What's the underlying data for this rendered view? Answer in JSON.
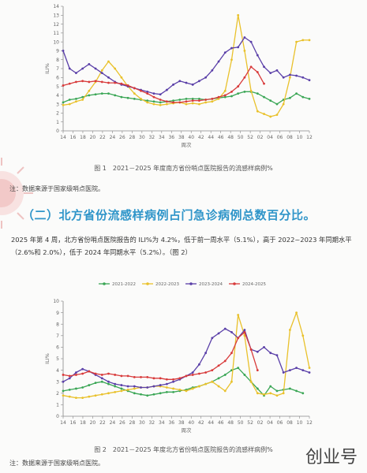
{
  "charts": [
    {
      "id": "c1",
      "caption": "图 1　2021－2025 年度南方省份哨点医院报告的流感样病例%",
      "note": "注：数据来源于国家级哨点医院。",
      "chart_data": {
        "type": "line",
        "ylabel": "ILI%",
        "xlabel": "周次",
        "ylim": [
          0,
          14
        ],
        "yticks": [
          0,
          1,
          2,
          3,
          4,
          5,
          6,
          7,
          8,
          9,
          10,
          11,
          12,
          13,
          14
        ],
        "xticks": [
          "14",
          "16",
          "18",
          "20",
          "22",
          "24",
          "26",
          "28",
          "30",
          "32",
          "34",
          "36",
          "38",
          "40",
          "42",
          "44",
          "46",
          "48",
          "50",
          "52",
          "02",
          "04",
          "06",
          "08",
          "10",
          "12"
        ],
        "grid": false,
        "legend": "none",
        "series": [
          {
            "name": "2021-2022",
            "color": "#3aa655",
            "values": [
              3.2,
              3.5,
              3.6,
              3.8,
              4.0,
              4.1,
              4.2,
              4.2,
              4.0,
              3.8,
              3.7,
              3.6,
              3.5,
              3.4,
              3.3,
              3.2,
              3.3,
              3.4,
              3.5,
              3.6,
              3.6,
              3.6,
              3.5,
              3.6,
              3.7,
              3.8,
              3.9,
              4.2,
              4.4,
              4.4,
              4.2,
              3.8,
              3.4,
              3.0,
              3.5,
              3.7,
              4.2,
              3.8,
              3.6
            ]
          },
          {
            "name": "2022-2023",
            "color": "#e9c12b",
            "values": [
              2.9,
              3.0,
              3.3,
              3.5,
              4.5,
              5.5,
              6.8,
              7.8,
              7.0,
              6.0,
              5.0,
              4.2,
              3.6,
              3.2,
              3.0,
              2.9,
              3.0,
              3.1,
              3.2,
              3.0,
              3.1,
              3.0,
              3.2,
              3.3,
              3.6,
              4.5,
              8.0,
              13.0,
              9.0,
              4.5,
              2.2,
              1.9,
              1.6,
              1.8,
              3.0,
              6.0,
              10.0,
              10.2,
              10.2
            ]
          },
          {
            "name": "2023-2024",
            "color": "#5a3fa8",
            "values": [
              9.0,
              7.0,
              6.5,
              7.0,
              7.5,
              7.0,
              6.5,
              6.0,
              5.5,
              5.2,
              5.0,
              4.8,
              4.6,
              4.4,
              4.2,
              4.1,
              4.6,
              5.2,
              5.6,
              5.4,
              5.2,
              5.6,
              6.0,
              6.8,
              7.8,
              8.8,
              9.3,
              9.4,
              10.5,
              10.0,
              8.5,
              7.2,
              6.5,
              6.8,
              6.0,
              6.3,
              6.2,
              6.0,
              5.7
            ]
          },
          {
            "name": "2024-2025",
            "color": "#d83a3a",
            "values": [
              5.1,
              5.3,
              5.5,
              5.6,
              5.5,
              5.6,
              5.5,
              5.4,
              5.4,
              5.3,
              5.1,
              4.8,
              4.5,
              4.2,
              3.8,
              3.5,
              3.3,
              3.2,
              3.2,
              3.3,
              3.4,
              3.4,
              3.5,
              3.6,
              3.8,
              4.0,
              4.4,
              5.0,
              6.0,
              7.2,
              6.6,
              5.3
            ]
          }
        ]
      }
    },
    {
      "id": "c2",
      "caption": "图 2　2021－2025 年度北方省份哨点医院报告的流感样病例%",
      "note": "注：数据来源于国家级哨点医院。",
      "chart_data": {
        "type": "line",
        "ylabel": "ILI%",
        "xlabel": "周次",
        "ylim": [
          0,
          10
        ],
        "yticks": [
          0,
          1,
          2,
          3,
          4,
          5,
          6,
          7,
          8,
          9,
          10
        ],
        "xticks": [
          "14",
          "16",
          "18",
          "20",
          "22",
          "24",
          "26",
          "28",
          "30",
          "32",
          "34",
          "36",
          "38",
          "40",
          "42",
          "44",
          "46",
          "48",
          "50",
          "52",
          "02",
          "04",
          "06",
          "08",
          "10",
          "12"
        ],
        "grid": false,
        "legend": "top",
        "series": [
          {
            "name": "2021-2022",
            "color": "#3aa655",
            "values": [
              2.2,
              2.3,
              2.4,
              2.5,
              2.7,
              2.9,
              3.0,
              2.8,
              2.6,
              2.4,
              2.2,
              2.0,
              1.9,
              1.8,
              1.9,
              2.0,
              2.1,
              2.1,
              2.2,
              2.3,
              2.5,
              2.6,
              2.8,
              3.0,
              3.3,
              3.6,
              4.0,
              4.2,
              3.6,
              3.0,
              2.4,
              1.8,
              2.6,
              2.2,
              2.3,
              2.4,
              2.2,
              2.0
            ]
          },
          {
            "name": "2022-2023",
            "color": "#e9c12b",
            "values": [
              1.8,
              1.7,
              1.6,
              1.6,
              1.7,
              1.8,
              1.9,
              2.0,
              2.1,
              2.2,
              2.3,
              2.4,
              2.5,
              2.5,
              2.6,
              2.6,
              2.5,
              2.4,
              2.3,
              2.2,
              2.4,
              2.6,
              2.8,
              3.0,
              2.6,
              2.2,
              3.0,
              8.8,
              7.0,
              3.0,
              2.0,
              1.9,
              2.0,
              1.8,
              2.0,
              7.5,
              9.0,
              7.0,
              4.2
            ]
          },
          {
            "name": "2023-2024",
            "color": "#5a3fa8",
            "values": [
              3.0,
              3.3,
              3.8,
              4.1,
              3.9,
              3.6,
              3.3,
              3.0,
              2.8,
              2.7,
              2.6,
              2.6,
              2.5,
              2.5,
              2.6,
              2.7,
              2.8,
              3.0,
              3.2,
              3.5,
              3.8,
              4.5,
              5.5,
              6.8,
              7.2,
              7.6,
              7.3,
              6.8,
              7.5,
              5.8,
              5.6,
              6.0,
              5.5,
              5.3,
              3.8,
              4.0,
              4.2,
              4.0,
              3.8
            ]
          },
          {
            "name": "2024-2025",
            "color": "#d83a3a",
            "values": [
              3.6,
              3.5,
              3.6,
              3.7,
              3.9,
              3.7,
              3.6,
              3.7,
              3.6,
              3.5,
              3.5,
              3.4,
              3.4,
              3.4,
              3.3,
              3.3,
              3.2,
              3.2,
              3.3,
              3.5,
              3.6,
              3.7,
              3.8,
              4.0,
              4.4,
              4.8,
              5.5,
              6.8,
              7.3,
              5.8,
              4.0
            ]
          }
        ]
      }
    }
  ],
  "section": {
    "heading": "（二）北方省份流感样病例占门急诊病例总数百分比。",
    "paragraph": "2025 年第 4 周，北方省份哨点医院报告的 ILI%为 4.2%，低于前一周水平（5.1%），高于 2022~2023 年同期水平（2.6%和 2.0%），低于 2024 年同期水平（5.2%）。（图 2）"
  },
  "watermark": "创业号"
}
